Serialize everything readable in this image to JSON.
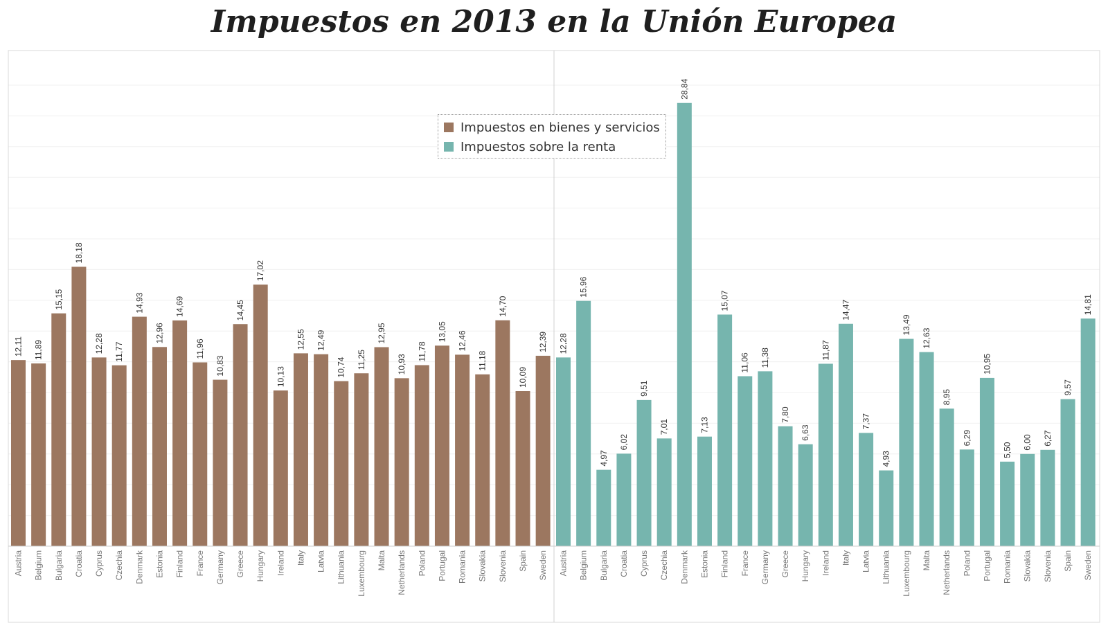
{
  "chart_data": {
    "type": "bar",
    "title": "Impuestos en 2013 en la Unión Europea",
    "xlabel": "",
    "ylabel": "",
    "ylim": [
      0,
      30
    ],
    "grid": true,
    "legend_position": "top-center",
    "decimal_separator": ",",
    "categories": [
      "Austria",
      "Belgium",
      "Bulgaria",
      "Croatia",
      "Cyprus",
      "Czechia",
      "Denmark",
      "Estonia",
      "Finland",
      "France",
      "Germany",
      "Greece",
      "Hungary",
      "Ireland",
      "Italy",
      "Latvia",
      "Lithuania",
      "Luxembourg",
      "Malta",
      "Netherlands",
      "Poland",
      "Portugal",
      "Romania",
      "Slovakia",
      "Slovenia",
      "Spain",
      "Sweden"
    ],
    "series": [
      {
        "name": "Impuestos en bienes y servicios",
        "color": "#9c7760",
        "values": [
          12.11,
          11.89,
          15.15,
          18.18,
          12.28,
          11.77,
          14.93,
          12.96,
          14.69,
          11.96,
          10.83,
          14.45,
          17.02,
          10.13,
          12.55,
          12.49,
          10.74,
          11.25,
          12.95,
          10.93,
          11.78,
          13.05,
          12.46,
          11.18,
          14.7,
          10.09,
          12.39
        ]
      },
      {
        "name": "Impuestos sobre la renta",
        "color": "#76b5ae",
        "values": [
          12.28,
          15.96,
          4.97,
          6.02,
          9.51,
          7.01,
          28.84,
          7.13,
          15.07,
          11.06,
          11.38,
          7.8,
          6.63,
          11.87,
          14.47,
          7.37,
          4.93,
          13.49,
          12.63,
          8.95,
          6.29,
          10.95,
          5.5,
          6.0,
          6.27,
          9.57,
          14.81
        ]
      }
    ]
  }
}
